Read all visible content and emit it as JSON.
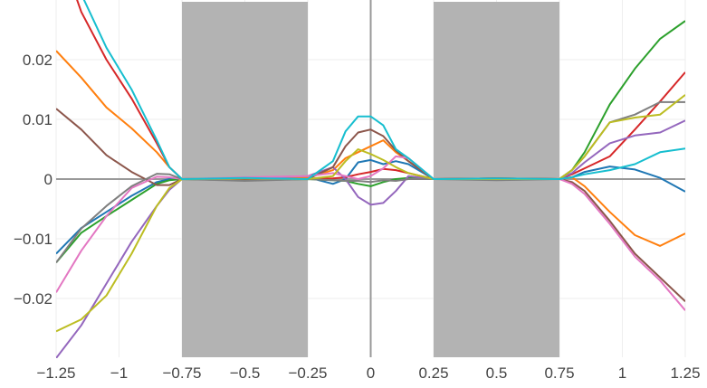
{
  "chart_data": {
    "type": "line",
    "title": "",
    "xlabel": "",
    "ylabel": "",
    "xlim": [
      -1.25,
      1.25
    ],
    "ylim": [
      -0.0298,
      0.0297
    ],
    "grid": true,
    "legend": "none",
    "x_ticks": [
      -1.25,
      -1,
      -0.75,
      -0.5,
      -0.25,
      0,
      0.25,
      0.5,
      0.75,
      1,
      1.25
    ],
    "x_tick_labels": [
      "−1.25",
      "−1",
      "−0.75",
      "−0.5",
      "−0.25",
      "0",
      "0.25",
      "0.5",
      "0.75",
      "1",
      "1.25"
    ],
    "y_ticks": [
      -0.02,
      -0.01,
      0,
      0.01,
      0.02
    ],
    "y_tick_labels": [
      "−0.02",
      "−0.01",
      "0",
      "0.01",
      "0.02"
    ],
    "shaded_regions": [
      [
        -0.75,
        -0.25
      ],
      [
        0.25,
        0.75
      ]
    ],
    "shade_color": "#b3b3b3",
    "x": [
      -1.25,
      -1.15,
      -1.05,
      -0.95,
      -0.85,
      -0.8,
      -0.75,
      -0.5,
      -0.25,
      -0.15,
      -0.1,
      -0.05,
      0,
      0.05,
      0.1,
      0.15,
      0.25,
      0.5,
      0.75,
      0.8,
      0.85,
      0.95,
      1.05,
      1.15,
      1.25
    ],
    "series": [
      {
        "color": "#1f77b4",
        "values": [
          -0.0125,
          -0.0082,
          -0.0055,
          -0.0028,
          -0.0005,
          0,
          0,
          0.0001,
          0.0003,
          -0.0008,
          0,
          0.0028,
          0.0032,
          0.0025,
          0.003,
          0.0025,
          0,
          0.0001,
          0,
          0.0003,
          0.0012,
          0.0021,
          0.0016,
          0.0002,
          -0.0021
        ]
      },
      {
        "color": "#ff7f0e",
        "values": [
          0.0215,
          0.017,
          0.012,
          0.0085,
          0.0045,
          0.002,
          0,
          0.0002,
          0.0002,
          0.0015,
          0.0035,
          0.0045,
          0.0055,
          0.0065,
          0.0045,
          0.003,
          0,
          0.0001,
          0,
          0.0003,
          -0.0012,
          -0.0055,
          -0.0094,
          -0.0112,
          -0.0091
        ]
      },
      {
        "color": "#2ca02c",
        "values": [
          -0.014,
          -0.009,
          -0.0062,
          -0.0035,
          -0.0008,
          -0.0002,
          0,
          -0.0002,
          0,
          -0.0002,
          -0.0003,
          -0.0008,
          -0.0012,
          -0.0005,
          0,
          0.0002,
          0,
          0,
          0,
          0.0015,
          0.0045,
          0.0125,
          0.0185,
          0.0235,
          0.0265
        ]
      },
      {
        "color": "#d62728",
        "values": [
          0.04,
          0.028,
          0.02,
          0.0135,
          0.006,
          0.002,
          0,
          0.0001,
          0,
          0.0001,
          0.0003,
          0.0008,
          0.0012,
          0.0017,
          0.0015,
          0.001,
          0,
          0.0001,
          0,
          0.0008,
          0.0018,
          0.0038,
          0.0083,
          0.013,
          0.0179
        ]
      },
      {
        "color": "#9467bd",
        "values": [
          -0.03,
          -0.0245,
          -0.0175,
          -0.0105,
          -0.0045,
          -0.0018,
          0,
          0.0002,
          0.0005,
          0.002,
          0,
          -0.003,
          -0.0043,
          -0.004,
          -0.002,
          0.0005,
          0,
          0,
          0,
          0.001,
          0.0028,
          0.006,
          0.0073,
          0.0078,
          0.0098
        ]
      },
      {
        "color": "#8c564b",
        "values": [
          0.0118,
          0.0083,
          0.004,
          0.0012,
          -0.001,
          -0.001,
          0,
          0,
          0,
          0.002,
          0.0055,
          0.0078,
          0.0083,
          0.0072,
          0.0048,
          0.003,
          0,
          0.0001,
          0,
          -0.0005,
          -0.002,
          -0.007,
          -0.0125,
          -0.0165,
          -0.0205
        ]
      },
      {
        "color": "#e377c2",
        "values": [
          -0.019,
          -0.012,
          -0.0062,
          -0.0015,
          0.0004,
          0.0003,
          0,
          0.0003,
          0.0005,
          0.001,
          0.0005,
          0,
          0.0005,
          0.0018,
          0.0038,
          0.0035,
          0,
          0,
          0,
          -0.0008,
          -0.0025,
          -0.0075,
          -0.013,
          -0.017,
          -0.022
        ]
      },
      {
        "color": "#7f7f7f",
        "values": [
          -0.014,
          -0.0083,
          -0.0045,
          -0.0012,
          0.0009,
          0.0008,
          0,
          -0.0003,
          0,
          -0.0002,
          -0.0003,
          -0.0003,
          -0.0005,
          -0.0002,
          -0.0003,
          0,
          0,
          -0.0002,
          0,
          0.0015,
          0.0038,
          0.0095,
          0.0108,
          0.0129,
          0.0129
        ]
      },
      {
        "color": "#bcbd22",
        "values": [
          -0.0255,
          -0.0235,
          -0.0195,
          -0.0125,
          -0.0045,
          -0.0015,
          0,
          0.0001,
          0,
          0.0005,
          0.003,
          0.005,
          0.0042,
          0.0032,
          0.002,
          0.001,
          0,
          0,
          0,
          0.0015,
          0.0038,
          0.0095,
          0.0103,
          0.0108,
          0.0141
        ]
      },
      {
        "color": "#17becf",
        "values": [
          0.042,
          0.031,
          0.022,
          0.015,
          0.0065,
          0.002,
          0,
          0.0002,
          0,
          0.003,
          0.008,
          0.0105,
          0.0105,
          0.009,
          0.005,
          0.0035,
          0,
          0.0001,
          0,
          0.0003,
          0.0008,
          0.0015,
          0.0025,
          0.0045,
          0.0051
        ]
      }
    ]
  }
}
